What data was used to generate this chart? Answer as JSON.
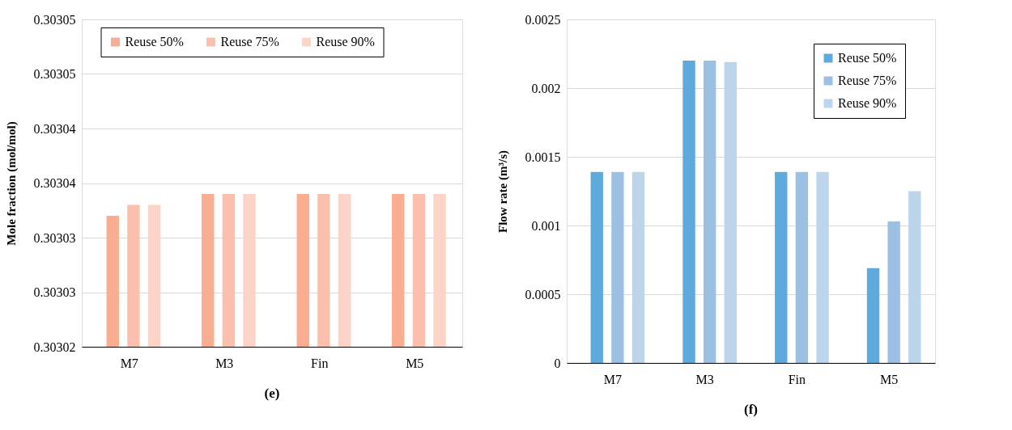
{
  "chart_data": [
    {
      "type": "bar",
      "ylabel": "Mole fraction (mol/mol)",
      "categories": [
        "M7",
        "M3",
        "Fin",
        "M5"
      ],
      "series": [
        {
          "name": "Reuse 50%",
          "color": "#f9ad91",
          "values": [
            0.303032,
            0.303034,
            0.303034,
            0.303034
          ]
        },
        {
          "name": "Reuse 75%",
          "color": "#fbc0ad",
          "values": [
            0.303033,
            0.303034,
            0.303034,
            0.303034
          ]
        },
        {
          "name": "Reuse 90%",
          "color": "#fcd4c7",
          "values": [
            0.303033,
            0.303034,
            0.303034,
            0.303034
          ]
        }
      ],
      "ylim": [
        0.30302,
        0.30305
      ],
      "yticks": [
        0.30302,
        {
          "value": 0.303025,
          "label": "0.30303"
        },
        0.30303,
        {
          "value": 0.303035,
          "label": "0.30304"
        },
        0.30304,
        {
          "value": 0.303045,
          "label": "0.30305"
        },
        0.30305
      ],
      "grid": "y",
      "legend": "top",
      "annotations": [
        "(e)"
      ]
    },
    {
      "type": "bar",
      "ylabel": "Flow rate (m³/s)",
      "categories": [
        "M7",
        "M3",
        "Fin",
        "M5"
      ],
      "series": [
        {
          "name": "Reuse 50%",
          "color": "#5eaadc",
          "values": [
            0.00139,
            0.0022,
            0.00139,
            0.00069
          ]
        },
        {
          "name": "Reuse 75%",
          "color": "#9bc0e4",
          "values": [
            0.00139,
            0.0022,
            0.00139,
            0.00103
          ]
        },
        {
          "name": "Reuse 90%",
          "color": "#bdd5ea",
          "values": [
            0.00139,
            0.00219,
            0.00139,
            0.00125
          ]
        }
      ],
      "ylim": [
        0,
        0.0025
      ],
      "yticks": [
        0,
        0.0005,
        0.001,
        0.0015,
        0.002,
        0.0025
      ],
      "grid": "y",
      "legend": "top right",
      "annotations": [
        "(f)"
      ]
    }
  ]
}
